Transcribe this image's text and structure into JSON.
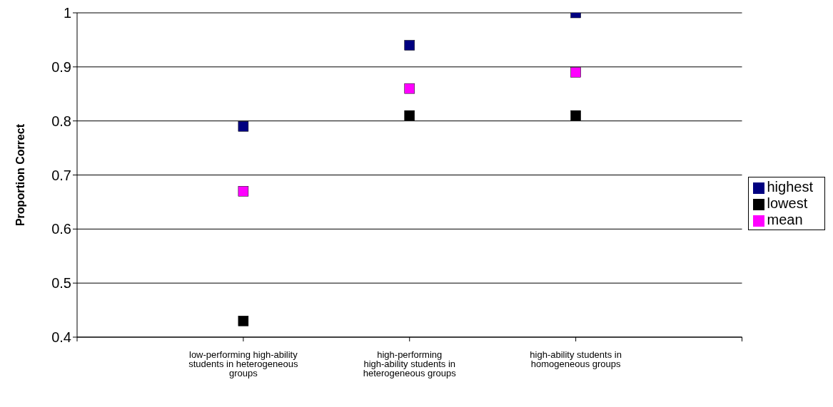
{
  "chart_data": {
    "type": "scatter",
    "ylabel": "Proportion Correct",
    "categories": [
      "low-performing high-ability students in heterogeneous groups",
      "high-performing high-ability students in heterogeneous groups",
      "high-ability students in homogeneous groups"
    ],
    "series": [
      {
        "name": "highest",
        "color": "#000080",
        "values": [
          0.79,
          0.94,
          1.0
        ]
      },
      {
        "name": "mean",
        "color": "#ff00ff",
        "values": [
          0.67,
          0.86,
          0.89
        ]
      },
      {
        "name": "lowest",
        "color": "#000000",
        "values": [
          0.43,
          0.81,
          0.81
        ]
      }
    ],
    "ylim": [
      0.4,
      1
    ],
    "yticks": [
      0.4,
      0.5,
      0.6,
      0.7,
      0.8,
      0.9,
      1
    ],
    "grid": "y",
    "legend": "right",
    "marker": "square"
  }
}
